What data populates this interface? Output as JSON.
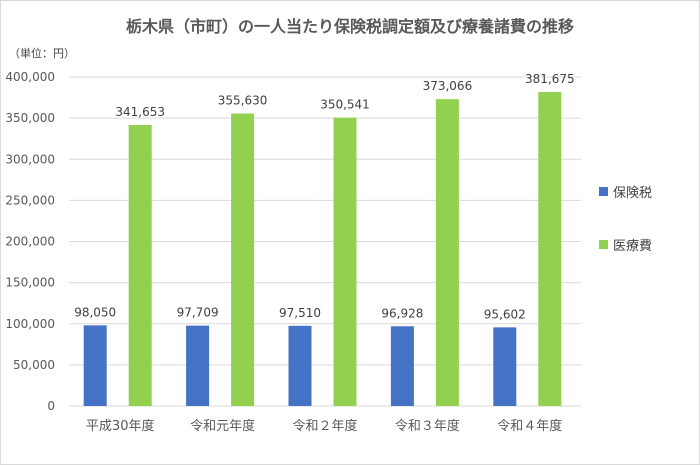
{
  "chart_data": {
    "type": "bar",
    "title": "栃木県（市町）の一人当たり保険税調定額及び療養諸費の推移",
    "unit_label": "（単位：円）",
    "categories": [
      "平成30年度",
      "令和元年度",
      "令和２年度",
      "令和３年度",
      "令和４年度"
    ],
    "series": [
      {
        "name": "保険税",
        "color": "#4472C4",
        "values": [
          98050,
          97709,
          97510,
          96928,
          95602
        ]
      },
      {
        "name": "医療費",
        "color": "#92D050",
        "values": [
          341653,
          355630,
          350541,
          373066,
          381675
        ]
      }
    ],
    "ylim": [
      0,
      400000
    ],
    "yticks": [
      0,
      50000,
      100000,
      150000,
      200000,
      250000,
      300000,
      350000,
      400000
    ],
    "grid": true,
    "legend_position": "right",
    "data_labels": true
  }
}
